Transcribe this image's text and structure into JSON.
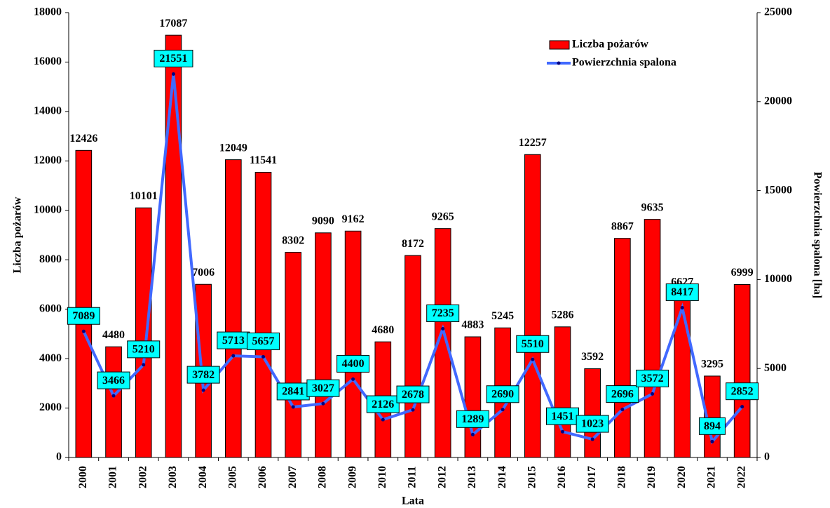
{
  "chart_data": {
    "type": "bar",
    "x_label": "Lata",
    "y_label": "Liczba pożarów",
    "y2_label": "Powierzchnia spalona [ha]",
    "categories": [
      "2000",
      "2001",
      "2002",
      "2003",
      "2004",
      "2005",
      "2006",
      "2007",
      "2008",
      "2009",
      "2010",
      "2011",
      "2012",
      "2013",
      "2014",
      "2015",
      "2016",
      "2017",
      "2018",
      "2019",
      "2020",
      "2021",
      "2022"
    ],
    "series": [
      {
        "name": "Liczba pożarów",
        "type": "bar",
        "color": "#ff0000",
        "values": [
          12426,
          4480,
          10101,
          17087,
          7006,
          12049,
          11541,
          8302,
          9090,
          9162,
          4680,
          8172,
          9265,
          4883,
          5245,
          12257,
          5286,
          3592,
          8867,
          9635,
          6627,
          3295,
          6999
        ]
      },
      {
        "name": "Powierzchnia spalona",
        "type": "line",
        "axis": "y2",
        "color": "#4169ff",
        "label_color": "#00ffff",
        "values": [
          7089,
          3466,
          5210,
          21551,
          3782,
          5713,
          5657,
          2841,
          3027,
          4400,
          2126,
          2678,
          7235,
          1289,
          2690,
          5510,
          1451,
          1023,
          2696,
          3572,
          8417,
          894,
          2852
        ]
      }
    ],
    "ylim": [
      0,
      18000
    ],
    "yticks": [
      0,
      2000,
      4000,
      6000,
      8000,
      10000,
      12000,
      14000,
      16000,
      18000
    ],
    "y2lim": [
      0,
      25000
    ],
    "y2ticks": [
      0,
      5000,
      10000,
      15000,
      20000,
      25000
    ],
    "grid": false,
    "legend": "top-right"
  }
}
